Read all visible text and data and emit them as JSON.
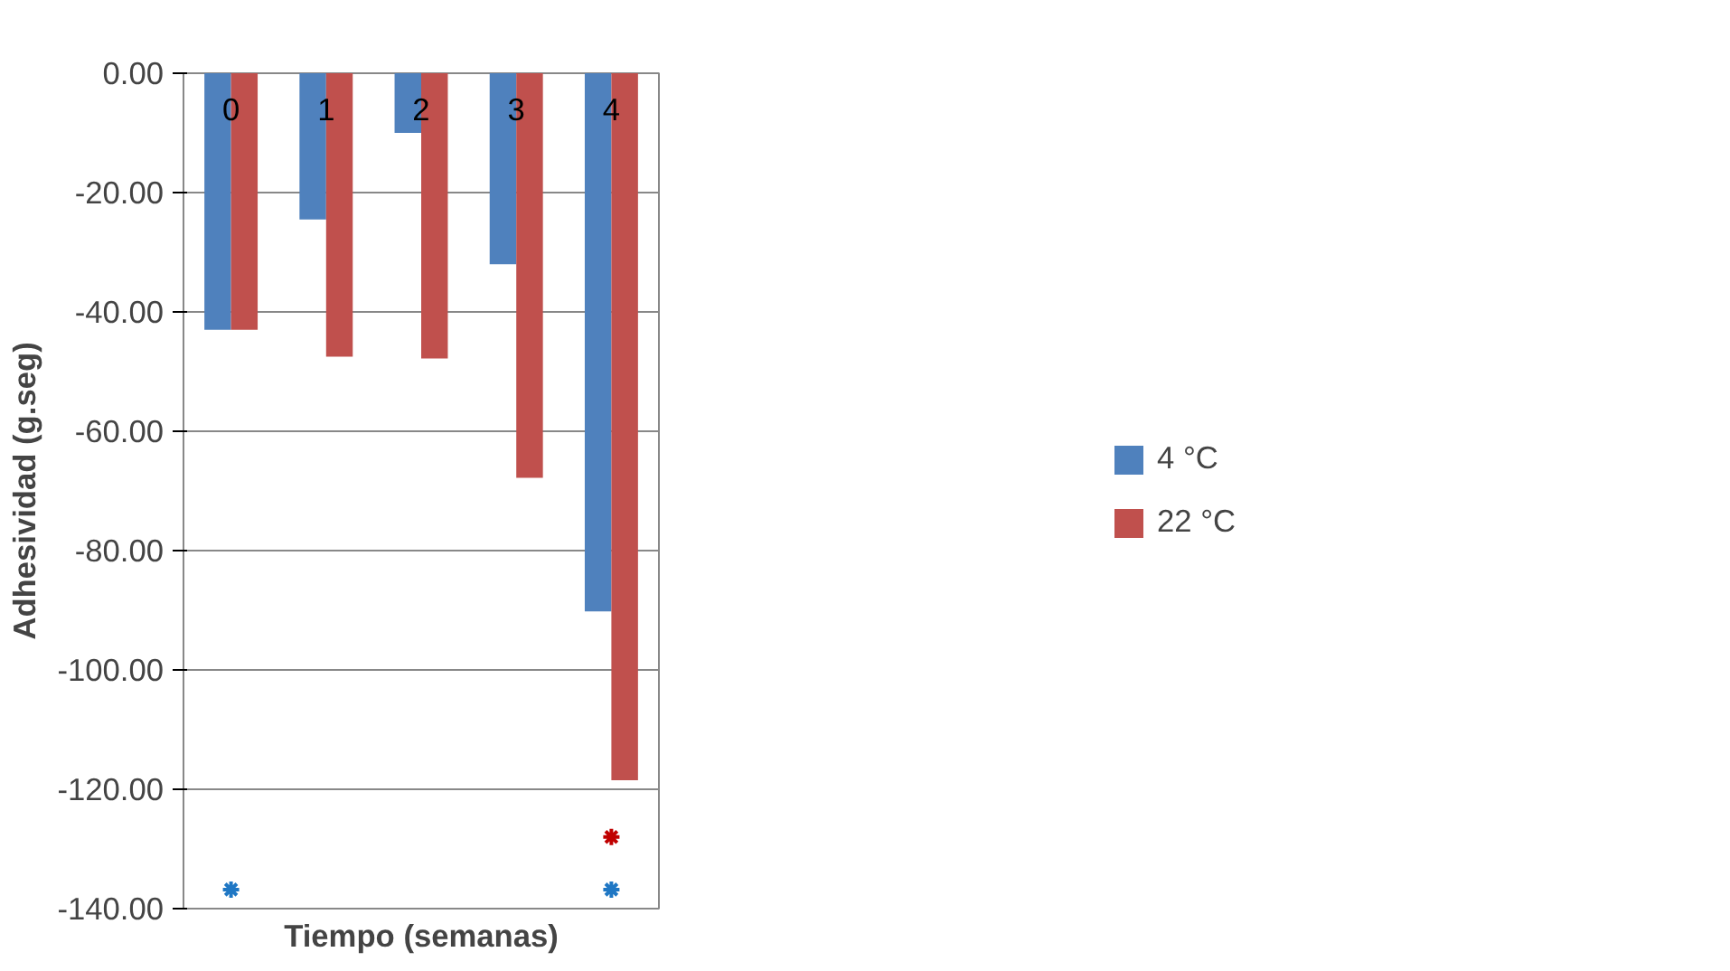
{
  "chart_data": {
    "type": "bar",
    "xlabel": "Tiempo (semanas)",
    "ylabel": "Adhesividad (g.seg)",
    "categories": [
      "0",
      "1",
      "2",
      "3",
      "4"
    ],
    "series": [
      {
        "name": "4 °C",
        "color": "#4f81bd",
        "values": [
          -43,
          -24.5,
          -10,
          -32,
          -90.2
        ]
      },
      {
        "name": "22 °C",
        "color": "#c0504d",
        "values": [
          -43,
          -47.5,
          -47.8,
          -67.8,
          -118.5
        ]
      },
      {
        "type": "scatter",
        "marker": "cross",
        "color": "#1f77c4",
        "x": [
          "0",
          "4"
        ],
        "values": [
          -136.8,
          -136.8
        ]
      },
      {
        "type": "scatter",
        "marker": "cross",
        "color": "#c00000",
        "x": [
          "4"
        ],
        "values": [
          -128
        ]
      }
    ],
    "ylim": [
      -140,
      0
    ],
    "yticks": [
      {
        "value": 0,
        "label": "0.00"
      },
      {
        "value": -20,
        "label": "-20.00"
      },
      {
        "value": -40,
        "label": "-40.00"
      },
      {
        "value": -60,
        "label": "-60.00"
      },
      {
        "value": -80,
        "label": "-80.00"
      },
      {
        "value": -100,
        "label": "-100.00"
      },
      {
        "value": -120,
        "label": "-120.00"
      },
      {
        "value": -140,
        "label": "-140.00"
      }
    ],
    "grid": "y",
    "legend": "right"
  }
}
